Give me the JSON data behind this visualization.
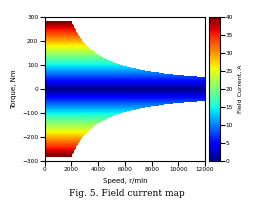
{
  "title": "Fig. 5. Field current map",
  "xlabel": "Speed, r/min",
  "ylabel": "Torque, Nm",
  "colorbar_label": "Field Current, A",
  "speed_min": 0,
  "speed_max": 12000,
  "torque_min": -300,
  "torque_max": 300,
  "field_current_min": 0,
  "field_current_max": 40,
  "base_speed": 2000,
  "max_torque_low_speed": 280,
  "colormap": "jet",
  "xticks": [
    0,
    2000,
    4000,
    6000,
    8000,
    10000,
    12000
  ],
  "yticks": [
    -300,
    -200,
    -100,
    0,
    100,
    200,
    300
  ],
  "colorbar_ticks": [
    0,
    5,
    10,
    15,
    20,
    25,
    30,
    35,
    40
  ],
  "figsize": [
    2.7,
    2.0
  ],
  "dpi": 100
}
